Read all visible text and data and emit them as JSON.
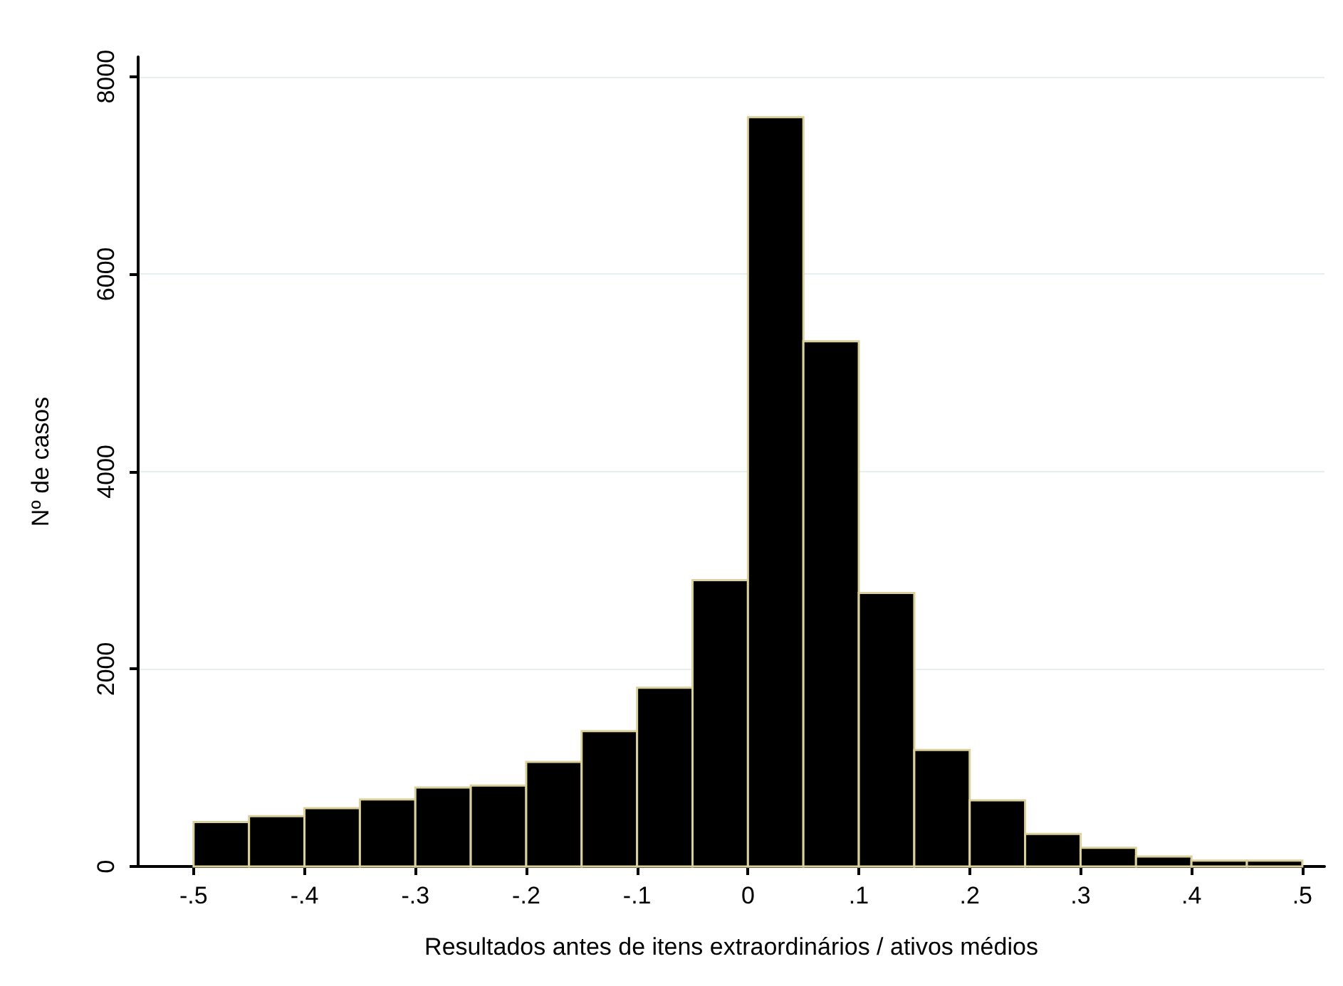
{
  "chart_data": {
    "type": "histogram",
    "xlabel": "Resultados antes de itens extraordinários / ativos médios",
    "ylabel": "Nº de casos",
    "bins": [
      -0.5,
      -0.45,
      -0.4,
      -0.35,
      -0.3,
      -0.25,
      -0.2,
      -0.15,
      -0.1,
      -0.05,
      0,
      0.05,
      0.1,
      0.15,
      0.2,
      0.25,
      0.3,
      0.35,
      0.4,
      0.45,
      0.5
    ],
    "values": [
      450,
      510,
      590,
      680,
      800,
      820,
      1060,
      1370,
      1810,
      2900,
      7590,
      5320,
      2770,
      1180,
      670,
      330,
      190,
      100,
      60,
      60
    ],
    "color": "#000000",
    "xlim": [
      -0.55,
      0.52
    ],
    "ylim": [
      0,
      8200
    ],
    "xticks": [
      {
        "value": -0.5,
        "label": "-.5"
      },
      {
        "value": -0.4,
        "label": "-.4"
      },
      {
        "value": -0.3,
        "label": "-.3"
      },
      {
        "value": -0.2,
        "label": "-.2"
      },
      {
        "value": -0.1,
        "label": "-.1"
      },
      0,
      {
        "value": 0.1,
        "label": ".1"
      },
      {
        "value": 0.2,
        "label": ".2"
      },
      {
        "value": 0.3,
        "label": ".3"
      },
      {
        "value": 0.4,
        "label": ".4"
      },
      {
        "value": 0.5,
        "label": ".5"
      }
    ],
    "yticks": [
      0,
      2000,
      4000,
      6000,
      8000
    ],
    "grid": "y"
  }
}
